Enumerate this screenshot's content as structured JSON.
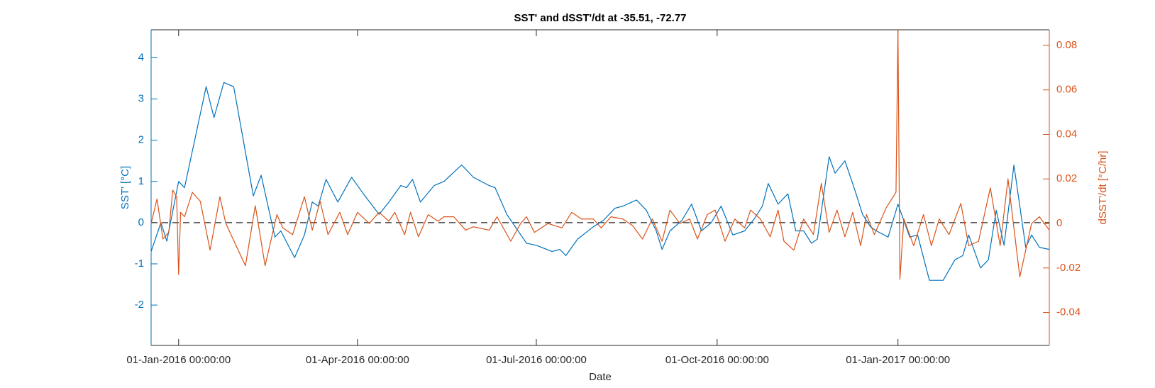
{
  "chart_data": {
    "type": "line",
    "title": "SST' and dSST'/dt at -35.51, -72.77",
    "x_label": "Date",
    "y_label": "SST' [°C]",
    "y2_label": "dSST'/dt [°C/hr]",
    "xlim": [
      "2015-12-18",
      "2017-03-19"
    ],
    "xticks": [
      {
        "value": "2016-01-01",
        "label": "01-Jan-2016 00:00:00"
      },
      {
        "value": "2016-04-01",
        "label": "01-Apr-2016 00:00:00"
      },
      {
        "value": "2016-07-01",
        "label": "01-Jul-2016 00:00:00"
      },
      {
        "value": "2016-10-01",
        "label": "01-Oct-2016 00:00:00"
      },
      {
        "value": "2017-01-01",
        "label": "01-Jan-2017 00:00:00"
      }
    ],
    "ylim": [
      -2.98,
      4.68
    ],
    "yticks": [
      -2,
      -1,
      0,
      1,
      2,
      3,
      4
    ],
    "y2lim": [
      -0.0548,
      0.087
    ],
    "y2ticks": [
      -0.04,
      -0.02,
      0,
      0.02,
      0.04,
      0.06,
      0.08
    ],
    "y_color": "#0072bd",
    "y2_color": "#d95319",
    "zero_line": true,
    "series": [
      {
        "name": "SST'",
        "color": "#0072bd",
        "x": [
          "2015-12-18",
          "2015-12-23",
          "2015-12-26",
          "2016-01-01",
          "2016-01-04",
          "2016-01-15",
          "2016-01-19",
          "2016-01-24",
          "2016-01-29",
          "2016-02-08",
          "2016-02-12",
          "2016-02-19",
          "2016-02-22",
          "2016-02-29",
          "2016-03-05",
          "2016-03-09",
          "2016-03-12",
          "2016-03-16",
          "2016-03-22",
          "2016-03-29",
          "2016-04-04",
          "2016-04-12",
          "2016-04-17",
          "2016-04-23",
          "2016-04-26",
          "2016-04-29",
          "2016-05-03",
          "2016-05-10",
          "2016-05-15",
          "2016-05-24",
          "2016-05-30",
          "2016-06-07",
          "2016-06-10",
          "2016-06-16",
          "2016-06-26",
          "2016-07-01",
          "2016-07-09",
          "2016-07-13",
          "2016-07-16",
          "2016-07-22",
          "2016-07-30",
          "2016-08-04",
          "2016-08-10",
          "2016-08-14",
          "2016-08-21",
          "2016-08-26",
          "2016-08-31",
          "2016-09-03",
          "2016-09-07",
          "2016-09-13",
          "2016-09-18",
          "2016-09-23",
          "2016-09-28",
          "2016-10-03",
          "2016-10-09",
          "2016-10-15",
          "2016-10-20",
          "2016-10-24",
          "2016-10-27",
          "2016-11-01",
          "2016-11-06",
          "2016-11-10",
          "2016-11-14",
          "2016-11-18",
          "2016-11-21",
          "2016-11-27",
          "2016-11-30",
          "2016-12-05",
          "2016-12-10",
          "2016-12-14",
          "2016-12-18",
          "2016-12-21",
          "2016-12-27",
          "2017-01-01",
          "2017-01-07",
          "2017-01-11",
          "2017-01-17",
          "2017-01-24",
          "2017-01-30",
          "2017-02-03",
          "2017-02-06",
          "2017-02-12",
          "2017-02-16",
          "2017-02-20",
          "2017-02-24",
          "2017-03-01",
          "2017-03-07",
          "2017-03-10",
          "2017-03-14",
          "2017-03-19"
        ],
        "values": [
          -0.7,
          0.0,
          -0.45,
          1.0,
          0.85,
          3.3,
          2.55,
          3.4,
          3.3,
          0.65,
          1.15,
          -0.35,
          -0.2,
          -0.85,
          -0.3,
          0.5,
          0.4,
          1.05,
          0.5,
          1.1,
          0.7,
          0.2,
          0.5,
          0.9,
          0.85,
          1.05,
          0.5,
          0.9,
          1.0,
          1.4,
          1.1,
          0.9,
          0.85,
          0.2,
          -0.5,
          -0.55,
          -0.7,
          -0.65,
          -0.8,
          -0.4,
          -0.1,
          0.05,
          0.35,
          0.4,
          0.55,
          0.3,
          -0.2,
          -0.65,
          -0.2,
          0.05,
          0.45,
          -0.2,
          0.0,
          0.4,
          -0.3,
          -0.2,
          0.1,
          0.4,
          0.95,
          0.45,
          0.7,
          -0.2,
          -0.2,
          -0.5,
          -0.4,
          1.6,
          1.2,
          1.5,
          0.8,
          0.2,
          -0.1,
          -0.2,
          -0.35,
          0.45,
          -0.35,
          -0.3,
          -1.4,
          -1.4,
          -0.9,
          -0.8,
          -0.3,
          -1.1,
          -0.9,
          0.3,
          -0.55,
          1.4,
          -0.6,
          -0.3,
          -0.6,
          -0.65
        ]
      },
      {
        "name": "dSST'/dt",
        "color": "#d95319",
        "axis": "y2",
        "x": [
          "2015-12-18",
          "2015-12-21",
          "2015-12-24",
          "2015-12-27",
          "2015-12-29",
          "2015-12-31",
          "2016-01-01",
          "2016-01-02",
          "2016-01-04",
          "2016-01-08",
          "2016-01-12",
          "2016-01-17",
          "2016-01-22",
          "2016-01-25",
          "2016-02-04",
          "2016-02-09",
          "2016-02-14",
          "2016-02-20",
          "2016-02-23",
          "2016-02-28",
          "2016-03-05",
          "2016-03-09",
          "2016-03-13",
          "2016-03-17",
          "2016-03-23",
          "2016-03-27",
          "2016-04-01",
          "2016-04-07",
          "2016-04-12",
          "2016-04-17",
          "2016-04-20",
          "2016-04-25",
          "2016-04-28",
          "2016-05-02",
          "2016-05-07",
          "2016-05-12",
          "2016-05-15",
          "2016-05-20",
          "2016-05-26",
          "2016-05-30",
          "2016-06-07",
          "2016-06-11",
          "2016-06-18",
          "2016-06-23",
          "2016-06-26",
          "2016-06-30",
          "2016-07-07",
          "2016-07-14",
          "2016-07-19",
          "2016-07-24",
          "2016-07-30",
          "2016-08-03",
          "2016-08-08",
          "2016-08-14",
          "2016-08-19",
          "2016-08-24",
          "2016-08-29",
          "2016-09-03",
          "2016-09-07",
          "2016-09-12",
          "2016-09-17",
          "2016-09-21",
          "2016-09-26",
          "2016-09-30",
          "2016-10-05",
          "2016-10-10",
          "2016-10-15",
          "2016-10-18",
          "2016-10-23",
          "2016-10-28",
          "2016-11-01",
          "2016-11-04",
          "2016-11-09",
          "2016-11-14",
          "2016-11-19",
          "2016-11-23",
          "2016-11-27",
          "2016-12-01",
          "2016-12-05",
          "2016-12-09",
          "2016-12-13",
          "2016-12-16",
          "2016-12-20",
          "2016-12-26",
          "2016-12-31",
          "2017-01-01",
          "2017-01-02",
          "2017-01-04",
          "2017-01-09",
          "2017-01-14",
          "2017-01-18",
          "2017-01-22",
          "2017-01-27",
          "2017-02-02",
          "2017-02-06",
          "2017-02-11",
          "2017-02-17",
          "2017-02-22",
          "2017-02-26",
          "2017-03-04",
          "2017-03-10",
          "2017-03-14",
          "2017-03-19"
        ],
        "values": [
          0.0,
          0.011,
          -0.007,
          -0.004,
          0.015,
          0.012,
          -0.023,
          0.005,
          0.003,
          0.014,
          0.01,
          -0.012,
          0.012,
          0.0,
          -0.019,
          0.008,
          -0.019,
          0.004,
          -0.002,
          -0.005,
          0.012,
          -0.003,
          0.01,
          -0.005,
          0.005,
          -0.005,
          0.005,
          0.0,
          0.005,
          0.001,
          0.005,
          -0.005,
          0.005,
          -0.006,
          0.004,
          0.001,
          0.003,
          0.003,
          -0.003,
          -0.0015,
          -0.003,
          0.003,
          -0.008,
          0.0,
          0.003,
          -0.004,
          0.0,
          -0.002,
          0.005,
          0.002,
          0.002,
          -0.002,
          0.003,
          0.002,
          -0.001,
          -0.007,
          0.002,
          -0.008,
          0.006,
          0.0,
          0.002,
          -0.007,
          0.004,
          0.006,
          -0.008,
          0.002,
          -0.002,
          0.006,
          0.002,
          -0.006,
          0.006,
          -0.008,
          -0.012,
          0.002,
          -0.005,
          0.018,
          -0.004,
          0.006,
          -0.006,
          0.005,
          -0.01,
          0.004,
          -0.005,
          0.007,
          0.014,
          0.087,
          -0.025,
          0.002,
          -0.01,
          0.004,
          -0.01,
          0.002,
          -0.005,
          0.009,
          -0.01,
          -0.008,
          0.016,
          -0.01,
          0.02,
          -0.024,
          0.0,
          0.003,
          -0.003
        ]
      }
    ]
  }
}
